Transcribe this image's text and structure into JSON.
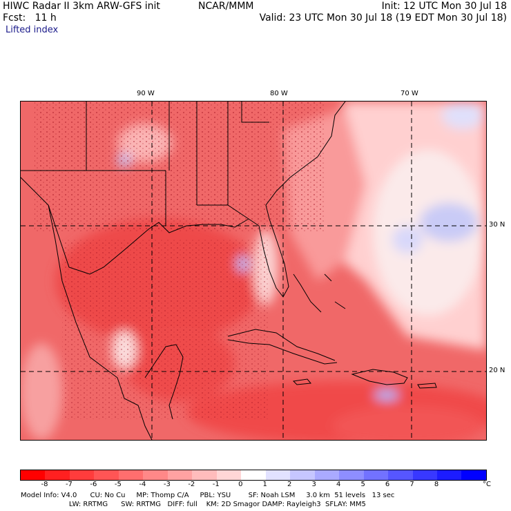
{
  "header": {
    "title": "HIWC Radar II 3km ARW-GFS init",
    "source": "NCAR/MMM",
    "init": "Init: 12 UTC Mon 30 Jul 18",
    "fcst": "Fcst:   11 h",
    "valid": "Valid: 23 UTC Mon 30 Jul 18 (19 EDT Mon 30 Jul 18)",
    "field": "Lifted index"
  },
  "map": {
    "lon_labels": [
      "90 W",
      "80 W",
      "70 W"
    ],
    "lat_labels": [
      "30 N",
      "20 N"
    ]
  },
  "colorbar": {
    "ticks": [
      "-8",
      "-7",
      "-6",
      "-5",
      "-4",
      "-3",
      "-2",
      "-1",
      "0",
      "1",
      "2",
      "3",
      "4",
      "5",
      "6",
      "7",
      "8"
    ],
    "unit": "°C",
    "colors": [
      "#ff0000",
      "#ff2020",
      "#ff3c3c",
      "#ff5555",
      "#ff6e6e",
      "#ff8888",
      "#ffa2a2",
      "#ffbcbc",
      "#ffd6d6",
      "#ffffff",
      "#e2e2ff",
      "#c6c6ff",
      "#aaaaff",
      "#8e8eff",
      "#7272ff",
      "#5656ff",
      "#3838ff",
      "#1c1cff",
      "#0000ff"
    ]
  },
  "model_info": {
    "line1": "Model Info: V4.0      CU: No Cu     MP: Thomp C/A     PBL: YSU        SF: Noah LSM     3.0 km  51 levels   13 sec",
    "line2": "                      LW: RRTMG      SW: RRTMG   DIFF: full    KM: 2D Smagor DAMP: Rayleigh3  SFLAY: MM5"
  }
}
